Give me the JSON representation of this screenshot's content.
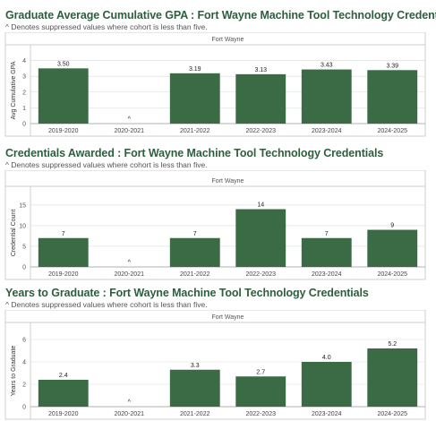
{
  "colors": {
    "bar": "#3a6b44",
    "title": "#2e5e3e",
    "grid": "#d9d9d9",
    "text": "#333333"
  },
  "sections": [
    {
      "title": "Graduate Average Cumulative GPA : Fort Wayne Machine Tool Technology Credentials",
      "subtitle": "^ Denotes suppressed values where cohort is less than five."
    },
    {
      "title": "Credentials Awarded : Fort Wayne Machine Tool Technology Credentials",
      "subtitle": "^ Denotes suppressed values where cohort is less than five."
    },
    {
      "title": "Years to Graduate : Fort Wayne Machine Tool Technology Credentials",
      "subtitle": "^ Denotes suppressed values where cohort is less than five."
    }
  ],
  "chart_data": [
    {
      "type": "bar",
      "header": "Fort Wayne",
      "ylabel": "Avg Cumulative GPA",
      "ylim": [
        0,
        4.2
      ],
      "yticks": [
        0,
        1,
        2,
        3,
        4
      ],
      "categories": [
        "2019-2020",
        "2020-2021",
        "2021-2022",
        "2022-2023",
        "2023-2024",
        "2024-2025"
      ],
      "values": [
        3.5,
        null,
        3.19,
        3.13,
        3.43,
        3.39
      ],
      "labels": [
        "3.50",
        "^",
        "3.19",
        "3.13",
        "3.43",
        "3.39"
      ],
      "grid": true
    },
    {
      "type": "bar",
      "header": "Fort Wayne",
      "ylabel": "Credential Count",
      "ylim": [
        0,
        16.5
      ],
      "yticks": [
        0,
        5,
        10,
        15
      ],
      "categories": [
        "2019-2020",
        "2020-2021",
        "2021-2022",
        "2022-2023",
        "2023-2024",
        "2024-2025"
      ],
      "values": [
        7,
        null,
        7,
        14,
        7,
        9
      ],
      "labels": [
        "7",
        "^",
        "7",
        "14",
        "7",
        "9"
      ],
      "grid": true
    },
    {
      "type": "bar",
      "header": "Fort Wayne",
      "ylabel": "Years to Graduate",
      "ylim": [
        0,
        6.4
      ],
      "yticks": [
        0,
        2,
        4,
        6
      ],
      "categories": [
        "2019-2020",
        "2020-2021",
        "2021-2022",
        "2022-2023",
        "2023-2024",
        "2024-2025"
      ],
      "values": [
        2.4,
        null,
        3.3,
        2.7,
        4.0,
        5.2
      ],
      "labels": [
        "2.4",
        "^",
        "3.3",
        "2.7",
        "4.0",
        "5.2"
      ],
      "grid": true
    }
  ]
}
